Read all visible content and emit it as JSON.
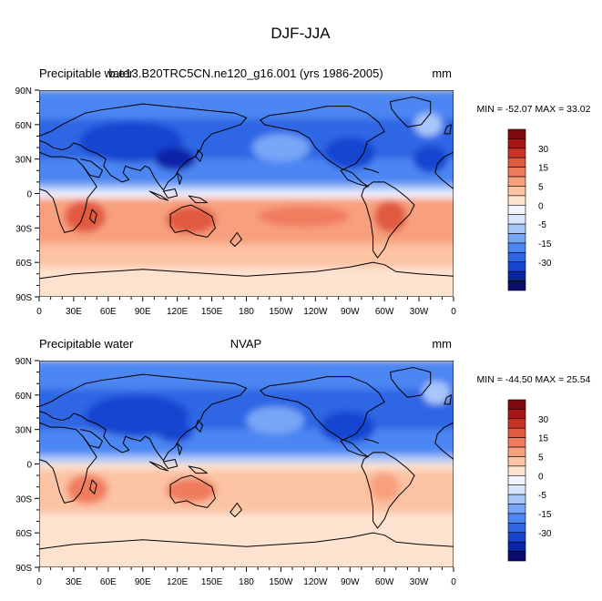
{
  "figure": {
    "title": "DJF-JJA"
  },
  "colors": {
    "palette": [
      "#0b0c6e",
      "#0a24a8",
      "#1745d0",
      "#2e66e4",
      "#4c86f2",
      "#78a6f7",
      "#a9c6fa",
      "#d8e6fd",
      "#f4f4ff",
      "#fde3cf",
      "#fcc3a4",
      "#f8a07e",
      "#f07c5e",
      "#e15a41",
      "#c93424",
      "#a81517",
      "#7f0a0e"
    ],
    "coast": "#000000"
  },
  "chart_data": [
    {
      "type": "heatmap",
      "panel": "top",
      "variable_label": "Precipitable water",
      "case_label": "b.e13.B20TRC5CN.ne120_g16.001 (yrs 1986-2005)",
      "units": "mm",
      "stats": "MIN = -52.07 MAX =  33.02",
      "x_ticks": [
        "0",
        "30E",
        "60E",
        "90E",
        "120E",
        "150E",
        "180",
        "150W",
        "120W",
        "90W",
        "60W",
        "30W",
        "0"
      ],
      "y_ticks": [
        "90N",
        "60N",
        "30N",
        "0",
        "30S",
        "60S",
        "90S"
      ],
      "xlim": [
        0,
        360
      ],
      "ylim": [
        -90,
        90
      ],
      "colorbar_labels": [
        "30",
        "15",
        "5",
        "0",
        "-5",
        "-15",
        "-30"
      ],
      "colorbar_levels": [
        -40,
        -35,
        -30,
        -25,
        -20,
        -15,
        -10,
        -5,
        -2,
        2,
        5,
        10,
        15,
        20,
        25,
        30,
        35
      ],
      "min": -52.07,
      "max": 33.02
    },
    {
      "type": "heatmap",
      "panel": "bottom",
      "variable_label": "Precipitable water",
      "case_label": "NVAP",
      "units": "mm",
      "stats": "MIN = -44.50 MAX =  25.54",
      "x_ticks": [
        "0",
        "30E",
        "60E",
        "90E",
        "120E",
        "150E",
        "180",
        "150W",
        "120W",
        "90W",
        "60W",
        "30W",
        "0"
      ],
      "y_ticks": [
        "90N",
        "60N",
        "30N",
        "0",
        "30S",
        "60S",
        "90S"
      ],
      "xlim": [
        0,
        360
      ],
      "ylim": [
        -90,
        90
      ],
      "colorbar_labels": [
        "30",
        "15",
        "5",
        "0",
        "-5",
        "-15",
        "-30"
      ],
      "colorbar_levels": [
        -40,
        -35,
        -30,
        -25,
        -20,
        -15,
        -10,
        -5,
        -2,
        2,
        5,
        10,
        15,
        20,
        25,
        30,
        35
      ],
      "min": -44.5,
      "max": 25.54
    }
  ]
}
